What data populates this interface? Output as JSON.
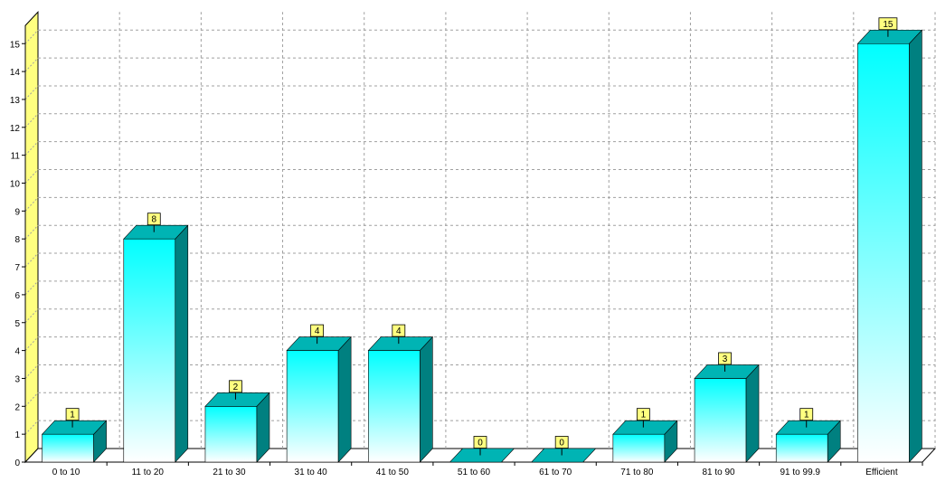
{
  "chart_data": {
    "type": "bar",
    "categories": [
      "0 to 10",
      "11 to 20",
      "21 to 30",
      "31 to 40",
      "41 to 50",
      "51 to 60",
      "61 to 70",
      "71 to 80",
      "81 to 90",
      "91 to 99.9",
      "Efficient"
    ],
    "values": [
      1,
      8,
      2,
      4,
      4,
      0,
      0,
      1,
      3,
      1,
      15
    ],
    "title": "",
    "xlabel": "",
    "ylabel": "",
    "ylim": [
      0,
      15
    ],
    "yticks": [
      0,
      1,
      2,
      3,
      4,
      5,
      6,
      7,
      8,
      9,
      10,
      11,
      12,
      13,
      14,
      15
    ],
    "grid": true,
    "legend": "none",
    "style": "3d-bars-with-value-labels"
  },
  "colors": {
    "bar_top_gradient": "#00ffff",
    "bar_bottom_gradient": "#ffffff",
    "bar_side": "#008080",
    "bar_cap": "#00b4b4",
    "value_label_bg": "#ffff80",
    "wall": "#ffff80",
    "grid": "#a0a0a0",
    "axis": "#000000"
  }
}
